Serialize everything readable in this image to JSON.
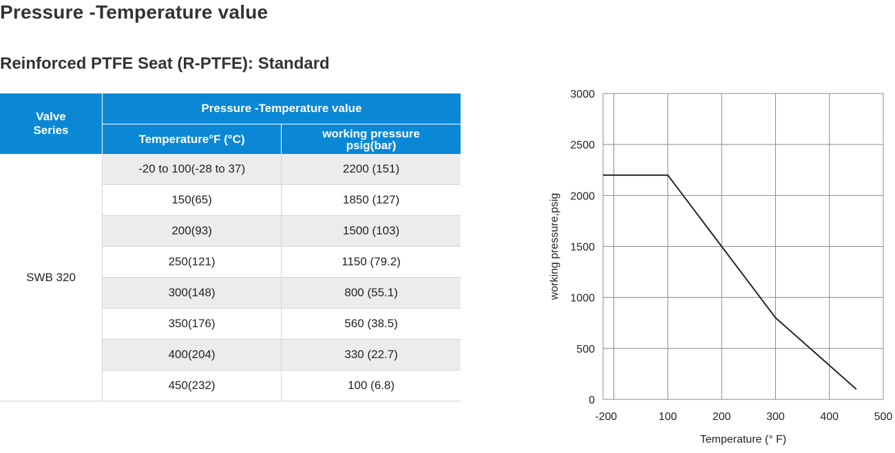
{
  "page": {
    "title": "Pressure -Temperature value",
    "section_title": "Reinforced PTFE Seat (R-PTFE): Standard"
  },
  "table": {
    "header": {
      "series_line1": "Valve",
      "series_line2": "Series",
      "group": "Pressure -Temperature value",
      "temperature": "Temperature°F (°C)",
      "pressure_line1": "working pressure",
      "pressure_line2": "psig(bar)"
    },
    "series": "SWB 320",
    "rows": [
      {
        "temperature": "-20  to 100(-28  to 37)",
        "pressure": "2200 (151)"
      },
      {
        "temperature": "150(65)",
        "pressure": "1850 (127)"
      },
      {
        "temperature": "200(93)",
        "pressure": "1500 (103)"
      },
      {
        "temperature": "250(121)",
        "pressure": "1150 (79.2)"
      },
      {
        "temperature": "300(148)",
        "pressure": "800 (55.1)"
      },
      {
        "temperature": "350(176)",
        "pressure": "560 (38.5)"
      },
      {
        "temperature": "400(204)",
        "pressure": "330 (22.7)"
      },
      {
        "temperature": "450(232)",
        "pressure": "100 (6.8)"
      }
    ],
    "colors": {
      "header_bg": "#0a88d6",
      "shaded_row": "#ececec"
    }
  },
  "chart_data": {
    "type": "line",
    "title": "",
    "xlabel": "Temperature (° F)",
    "ylabel": "working pressure,psig",
    "xlim": [
      -20,
      500
    ],
    "ylim": [
      0,
      3000
    ],
    "x_ticks": [
      -20,
      0,
      100,
      200,
      300,
      400,
      500
    ],
    "y_ticks": [
      0,
      500,
      1000,
      1500,
      2000,
      2500,
      3000
    ],
    "x_gridlines": [
      0,
      100,
      200,
      300,
      400
    ],
    "grid": true,
    "series": [
      {
        "x": [
          -20,
          100,
          200,
          300,
          450
        ],
        "y": [
          2200,
          2200,
          1500,
          800,
          100
        ]
      }
    ],
    "line_color": "#222222",
    "grid_color": "#888888"
  }
}
